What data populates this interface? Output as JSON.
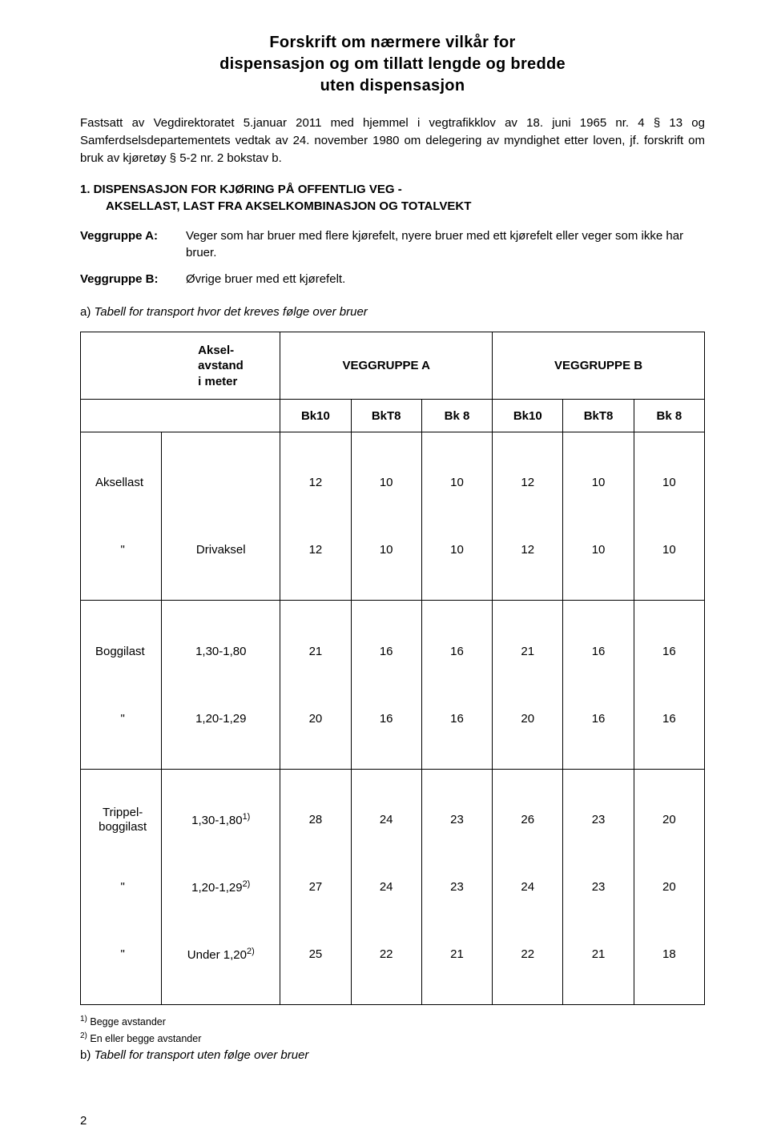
{
  "title": {
    "line1": "Forskrift om nærmere vilkår for",
    "line2": "dispensasjon og om tillatt lengde og bredde",
    "line3": "uten dispensasjon"
  },
  "intro": "Fastsatt av Vegdirektoratet 5.januar 2011 med hjemmel i vegtrafikklov av 18. juni 1965 nr. 4 § 13 og Samferdselsdepartementets vedtak av 24. november 1980 om delegering av myndighet etter loven, jf. forskrift om bruk av kjøretøy § 5-2 nr. 2 bokstav b.",
  "section": {
    "number_title": "1. DISPENSASJON FOR KJØRING PÅ OFFENTLIG VEG -",
    "subtitle": "AKSELLAST, LAST FRA AKSELKOMBINASJON OG TOTALVEKT"
  },
  "veggrupper": {
    "a": {
      "label": "Veggruppe A:",
      "body": "Veger som har bruer med flere kjørefelt, nyere bruer med ett kjørefelt eller veger som ikke har bruer."
    },
    "b": {
      "label": "Veggruppe B:",
      "body": "Øvrige bruer med ett kjørefelt."
    }
  },
  "caption_a": {
    "letter": "a)",
    "rest": " Tabell for transport hvor det kreves følge over bruer"
  },
  "table": {
    "head": {
      "aksel_lines": [
        "Aksel-",
        "avstand",
        "i meter"
      ],
      "groupA": "VEGGRUPPE A",
      "groupB": "VEGGRUPPE B",
      "bk": [
        "Bk10",
        "BkT8",
        "Bk 8",
        "Bk10",
        "BkT8",
        "Bk 8"
      ]
    },
    "aksellast": {
      "label": "Aksellast",
      "row1": [
        "12",
        "10",
        "10",
        "12",
        "10",
        "10"
      ],
      "driv_label": "Drivaksel",
      "row2": [
        "12",
        "10",
        "10",
        "12",
        "10",
        "10"
      ]
    },
    "boggilast": {
      "label": "Boggilast",
      "r1_sub": "1,30-1,80",
      "r1": [
        "21",
        "16",
        "16",
        "21",
        "16",
        "16"
      ],
      "r2_sub": "1,20-1,29",
      "r2": [
        "20",
        "16",
        "16",
        "20",
        "16",
        "16"
      ]
    },
    "trippel": {
      "label_l1": "Trippel-",
      "label_l2": "boggilast",
      "r1_sub": "1,30-1,80",
      "r1_sup": "1)",
      "r1": [
        "28",
        "24",
        "23",
        "26",
        "23",
        "20"
      ],
      "r2_sub": "1,20-1,29",
      "r2_sup": "2)",
      "r2": [
        "27",
        "24",
        "23",
        "24",
        "23",
        "20"
      ],
      "r3_sub": "Under 1,20",
      "r3_sup": "2)",
      "r3": [
        "25",
        "22",
        "21",
        "22",
        "21",
        "18"
      ]
    }
  },
  "footnotes": {
    "f1_sup": "1)",
    "f1": " Begge avstander",
    "f2_sup": "2)",
    "f2": " En eller begge avstander"
  },
  "caption_b": {
    "letter": "b)",
    "rest": " Tabell for transport uten følge over bruer"
  },
  "quote": "\"",
  "page_number": "2"
}
